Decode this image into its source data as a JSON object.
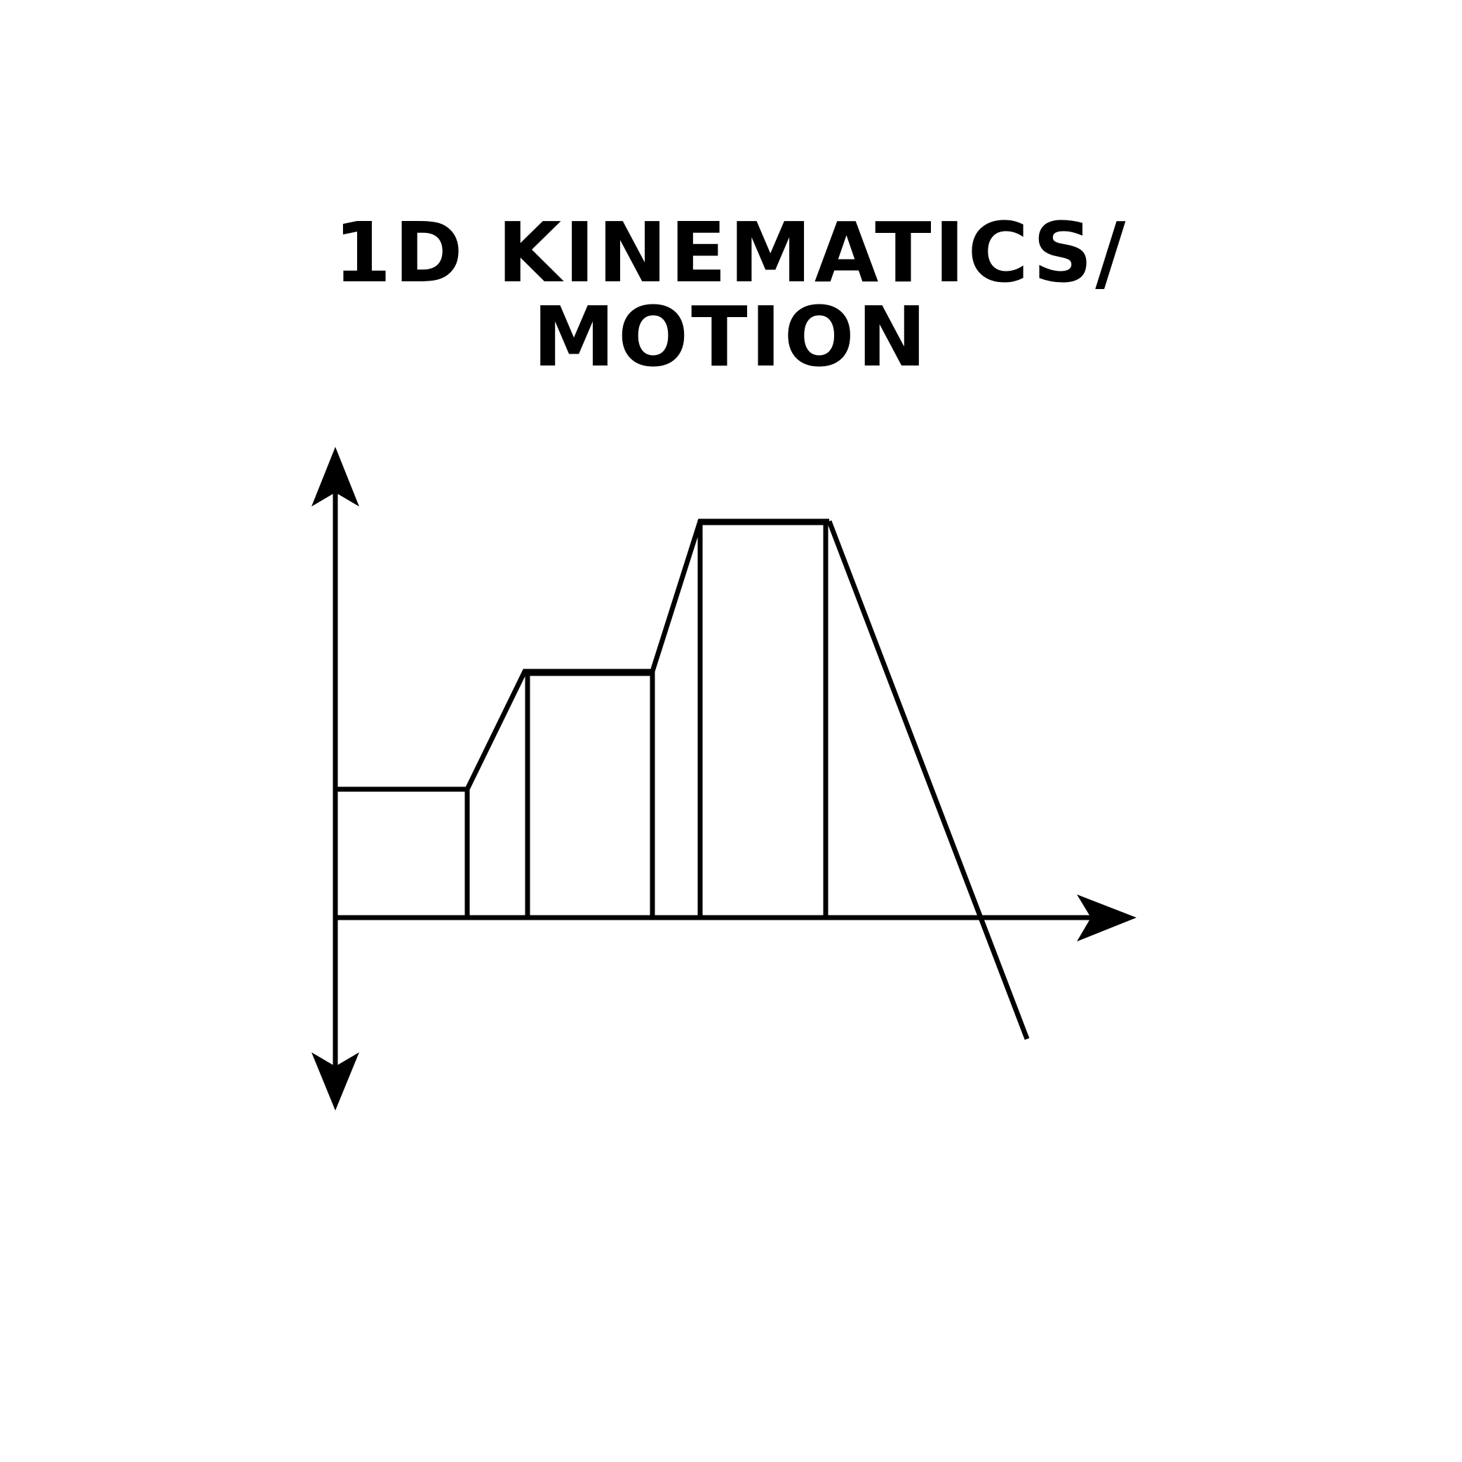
{
  "title": {
    "line1": "1D KINEMATICS/",
    "line2": "MOTION"
  },
  "colors": {
    "stroke": "#000000",
    "background": "#ffffff"
  },
  "icon": "velocity-time-graph-icon"
}
